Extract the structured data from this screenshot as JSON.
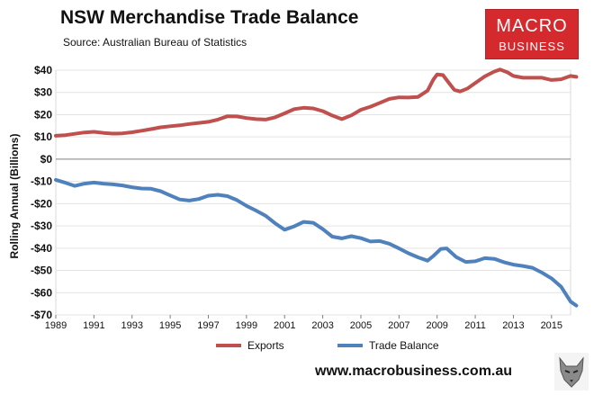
{
  "header": {
    "title": "NSW Merchandise Trade Balance",
    "source": "Source: Australian Bureau of Statistics"
  },
  "logo": {
    "line1": "MACRO",
    "line2": "BUSINESS",
    "color": "#d42a2e"
  },
  "footer": {
    "website": "www.macrobusiness.com.au"
  },
  "icons": {
    "watermark": "wolf-icon"
  },
  "chart_data": {
    "type": "line",
    "title": "NSW Merchandise Trade Balance",
    "subtitle": "Source: Australian Bureau of Statistics",
    "xlabel": "",
    "ylabel": "Rolling Annual (Billions)",
    "xlim": [
      1989,
      2016
    ],
    "ylim": [
      -70,
      40
    ],
    "x_ticks": [
      "1989",
      "1991",
      "1993",
      "1995",
      "1997",
      "1999",
      "2001",
      "2003",
      "2005",
      "2007",
      "2009",
      "2011",
      "2013",
      "2015"
    ],
    "y_ticks": [
      {
        "value": 40,
        "label": "$40"
      },
      {
        "value": 30,
        "label": "$30"
      },
      {
        "value": 20,
        "label": "$20"
      },
      {
        "value": 10,
        "label": "$10"
      },
      {
        "value": 0,
        "label": "$0"
      },
      {
        "value": -10,
        "label": "-$10"
      },
      {
        "value": -20,
        "label": "-$20"
      },
      {
        "value": -30,
        "label": "-$30"
      },
      {
        "value": -40,
        "label": "-$40"
      },
      {
        "value": -50,
        "label": "-$50"
      },
      {
        "value": -60,
        "label": "-$60"
      },
      {
        "value": -70,
        "label": "-$70"
      }
    ],
    "grid": "horizontal",
    "legend": "bottom",
    "series": [
      {
        "name": "Exports",
        "color": "#c0504d",
        "points": [
          [
            1989.0,
            10.5
          ],
          [
            1989.5,
            10.8
          ],
          [
            1990.0,
            11.4
          ],
          [
            1990.5,
            12.0
          ],
          [
            1991.0,
            12.3
          ],
          [
            1991.5,
            11.8
          ],
          [
            1992.0,
            11.5
          ],
          [
            1992.5,
            11.6
          ],
          [
            1993.0,
            12.1
          ],
          [
            1993.5,
            12.8
          ],
          [
            1994.0,
            13.5
          ],
          [
            1994.5,
            14.3
          ],
          [
            1995.0,
            14.8
          ],
          [
            1995.5,
            15.2
          ],
          [
            1996.0,
            15.8
          ],
          [
            1996.5,
            16.3
          ],
          [
            1997.0,
            16.8
          ],
          [
            1997.5,
            17.8
          ],
          [
            1998.0,
            19.3
          ],
          [
            1998.5,
            19.2
          ],
          [
            1999.0,
            18.5
          ],
          [
            1999.5,
            18.0
          ],
          [
            2000.0,
            17.8
          ],
          [
            2000.5,
            18.8
          ],
          [
            2001.0,
            20.6
          ],
          [
            2001.5,
            22.5
          ],
          [
            2002.0,
            23.1
          ],
          [
            2002.5,
            22.8
          ],
          [
            2003.0,
            21.6
          ],
          [
            2003.5,
            19.6
          ],
          [
            2004.0,
            18.0
          ],
          [
            2004.5,
            19.7
          ],
          [
            2005.0,
            22.2
          ],
          [
            2005.5,
            23.6
          ],
          [
            2006.0,
            25.3
          ],
          [
            2006.5,
            27.1
          ],
          [
            2007.0,
            27.8
          ],
          [
            2007.5,
            27.7
          ],
          [
            2008.0,
            28.0
          ],
          [
            2008.5,
            30.8
          ],
          [
            2008.8,
            35.8
          ],
          [
            2009.0,
            38.1
          ],
          [
            2009.3,
            37.8
          ],
          [
            2009.6,
            34.5
          ],
          [
            2009.9,
            31.2
          ],
          [
            2010.2,
            30.4
          ],
          [
            2010.6,
            31.8
          ],
          [
            2011.0,
            34.2
          ],
          [
            2011.5,
            37.2
          ],
          [
            2012.0,
            39.4
          ],
          [
            2012.3,
            40.3
          ],
          [
            2012.7,
            39.0
          ],
          [
            2013.0,
            37.4
          ],
          [
            2013.5,
            36.6
          ],
          [
            2014.0,
            36.6
          ],
          [
            2014.5,
            36.6
          ],
          [
            2015.0,
            35.6
          ],
          [
            2015.5,
            35.9
          ],
          [
            2016.0,
            37.4
          ],
          [
            2016.3,
            37.0
          ]
        ]
      },
      {
        "name": "Trade Balance",
        "color": "#4f81bd",
        "points": [
          [
            1989.0,
            -9.3
          ],
          [
            1989.5,
            -10.6
          ],
          [
            1990.0,
            -12.0
          ],
          [
            1990.5,
            -11.0
          ],
          [
            1991.0,
            -10.5
          ],
          [
            1991.5,
            -11.0
          ],
          [
            1992.0,
            -11.3
          ],
          [
            1992.5,
            -11.8
          ],
          [
            1993.0,
            -12.6
          ],
          [
            1993.5,
            -13.2
          ],
          [
            1994.0,
            -13.3
          ],
          [
            1994.5,
            -14.4
          ],
          [
            1995.0,
            -16.3
          ],
          [
            1995.5,
            -18.1
          ],
          [
            1996.0,
            -18.6
          ],
          [
            1996.5,
            -17.9
          ],
          [
            1997.0,
            -16.4
          ],
          [
            1997.5,
            -16.0
          ],
          [
            1998.0,
            -16.6
          ],
          [
            1998.5,
            -18.4
          ],
          [
            1999.0,
            -21.0
          ],
          [
            1999.5,
            -23.1
          ],
          [
            2000.0,
            -25.4
          ],
          [
            2000.5,
            -28.8
          ],
          [
            2001.0,
            -31.7
          ],
          [
            2001.5,
            -30.2
          ],
          [
            2002.0,
            -28.2
          ],
          [
            2002.5,
            -28.6
          ],
          [
            2003.0,
            -31.4
          ],
          [
            2003.5,
            -34.8
          ],
          [
            2004.0,
            -35.6
          ],
          [
            2004.5,
            -34.6
          ],
          [
            2005.0,
            -35.5
          ],
          [
            2005.5,
            -37.0
          ],
          [
            2006.0,
            -36.8
          ],
          [
            2006.5,
            -38.0
          ],
          [
            2007.0,
            -40.1
          ],
          [
            2007.5,
            -42.3
          ],
          [
            2008.0,
            -44.1
          ],
          [
            2008.5,
            -45.6
          ],
          [
            2008.8,
            -43.5
          ],
          [
            2009.2,
            -40.3
          ],
          [
            2009.5,
            -40.1
          ],
          [
            2010.0,
            -44.0
          ],
          [
            2010.5,
            -46.2
          ],
          [
            2011.0,
            -45.9
          ],
          [
            2011.5,
            -44.5
          ],
          [
            2012.0,
            -44.8
          ],
          [
            2012.5,
            -46.3
          ],
          [
            2013.0,
            -47.4
          ],
          [
            2013.5,
            -48.0
          ],
          [
            2014.0,
            -48.8
          ],
          [
            2014.5,
            -51.0
          ],
          [
            2015.0,
            -53.6
          ],
          [
            2015.5,
            -57.3
          ],
          [
            2016.0,
            -64.0
          ],
          [
            2016.3,
            -65.8
          ]
        ]
      }
    ]
  }
}
